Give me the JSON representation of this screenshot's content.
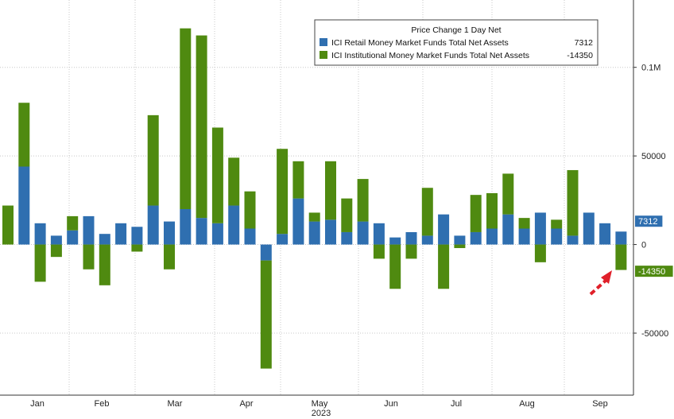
{
  "chart_data": {
    "type": "bar",
    "stacked": true,
    "legend": {
      "title": "Price Change 1 Day Net",
      "placement": "top-right",
      "entries": [
        {
          "name": "ICI Retail Money Market Funds Total Net Assets",
          "value": "7312",
          "color": "#2f6fb0"
        },
        {
          "name": "ICI Institutional Money Market Funds Total Net Assets",
          "value": "-14350",
          "color": "#4f8a10"
        }
      ]
    },
    "series": [
      {
        "name": "ICI Retail Money Market Funds Total Net Assets",
        "color": "#2f6fb0",
        "values": [
          0,
          44000,
          12000,
          5000,
          8000,
          16000,
          6000,
          12000,
          10000,
          22000,
          13000,
          20000,
          15000,
          12000,
          22000,
          9000,
          -9000,
          6000,
          26000,
          13000,
          14000,
          7000,
          13000,
          12000,
          4000,
          7000,
          5000,
          17000,
          5000,
          7000,
          9000,
          17000,
          9000,
          18000,
          9000,
          5000,
          18000,
          12000,
          7312
        ]
      },
      {
        "name": "ICI Institutional Money Market Funds Total Net Assets",
        "color": "#4f8a10",
        "values": [
          22000,
          36000,
          -21000,
          -7000,
          8000,
          -14000,
          -23000,
          0,
          -4000,
          51000,
          -14000,
          102000,
          103000,
          54000,
          27000,
          21000,
          -61000,
          48000,
          21000,
          5000,
          33000,
          19000,
          24000,
          -8000,
          -25000,
          -8000,
          27000,
          -25000,
          -2000,
          21000,
          20000,
          23000,
          6000,
          -10000,
          5000,
          37000,
          0,
          0,
          -14350
        ]
      }
    ],
    "x_ticks": [
      "Jan",
      "Feb",
      "Mar",
      "Apr",
      "May",
      "Jun",
      "Jul",
      "Aug",
      "Sep"
    ],
    "year_label": "2023",
    "y_ticks": [
      "0.1M",
      "50000",
      "0",
      "-50000"
    ],
    "y_tick_values": [
      100000,
      50000,
      0,
      -50000
    ],
    "ylim": [
      -85000,
      138000
    ],
    "last_value_labels": [
      {
        "text": "7312",
        "color": "#2f6fb0"
      },
      {
        "text": "-14350",
        "color": "#4f8a10"
      }
    ],
    "grid": true,
    "annotation": "red dashed arrow pointing at last bar"
  }
}
